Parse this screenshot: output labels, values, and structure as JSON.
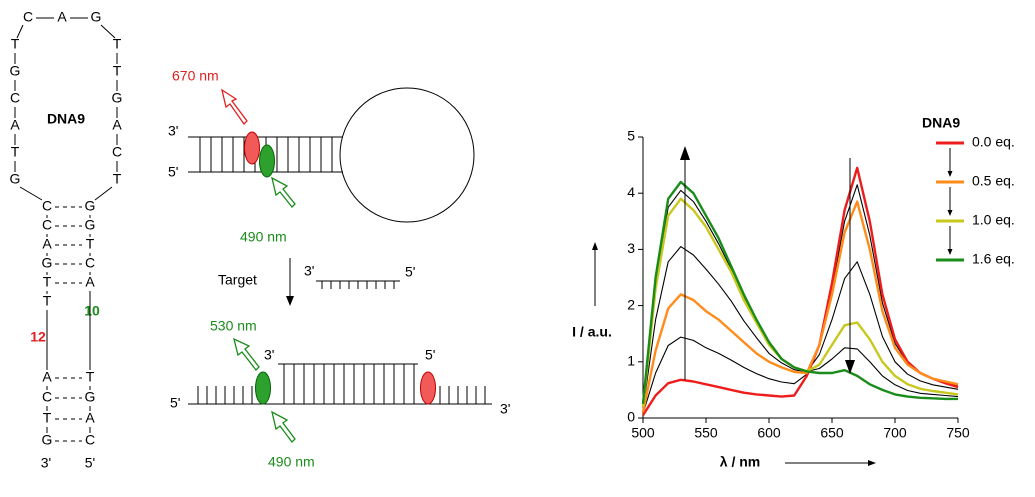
{
  "dna": {
    "label": "DNA9",
    "loop_top": [
      "C",
      "A",
      "G"
    ],
    "loop_left": [
      "T",
      "G",
      "C",
      "A",
      "T",
      "G"
    ],
    "loop_right": [
      "T",
      "T",
      "G",
      "A",
      "C",
      "T"
    ],
    "stem_left": [
      "C",
      "C",
      "A",
      "G",
      "T",
      "T",
      "A",
      "C",
      "T",
      "G"
    ],
    "stem_right": [
      "G",
      "G",
      "T",
      "C",
      "A",
      "T",
      "G",
      "A",
      "C"
    ],
    "marker_left": "12",
    "marker_right": "10",
    "end_left": "3'",
    "end_right": "5'"
  },
  "probe": {
    "emission": "670 nm",
    "excitation": "490 nm",
    "end_top": "3'",
    "end_bottom": "5'"
  },
  "target": {
    "label": "Target",
    "end_left": "3'",
    "end_right": "5'"
  },
  "duplex": {
    "emission": "530 nm",
    "excitation": "490 nm",
    "end_left": "5'",
    "end_top_left": "3'",
    "end_top_right": "5'",
    "end_right": "3'"
  },
  "chart_data": {
    "type": "line",
    "x_label": "λ / nm",
    "y_label": "I / a.u.",
    "legend_title": "DNA9",
    "legend": "right",
    "grid": false,
    "xlim": [
      500,
      750
    ],
    "xticks": [
      500,
      550,
      600,
      650,
      700,
      750
    ],
    "ylim": [
      0,
      5
    ],
    "yticks": [
      0,
      1,
      2,
      3,
      4,
      5
    ],
    "x": [
      500,
      510,
      520,
      530,
      540,
      550,
      560,
      570,
      580,
      590,
      600,
      610,
      620,
      630,
      640,
      650,
      660,
      670,
      680,
      690,
      700,
      710,
      720,
      730,
      740,
      750
    ],
    "series": [
      {
        "color": "#000000",
        "values": [
          0.08,
          0.8,
          1.29,
          1.44,
          1.38,
          1.25,
          1.15,
          1.03,
          0.9,
          0.79,
          0.7,
          0.64,
          0.61,
          0.78,
          1.3,
          2.3,
          3.5,
          4.15,
          3.25,
          2.05,
          1.33,
          0.98,
          0.8,
          0.7,
          0.64,
          0.58
        ]
      },
      {
        "color": "#000000",
        "values": [
          0.15,
          1.75,
          2.78,
          3.05,
          2.9,
          2.65,
          2.38,
          2.08,
          1.73,
          1.43,
          1.15,
          0.98,
          0.86,
          0.82,
          1.13,
          1.75,
          2.48,
          2.78,
          2.2,
          1.45,
          1.0,
          0.78,
          0.66,
          0.59,
          0.55,
          0.51
        ]
      },
      {
        "color": "#000000",
        "values": [
          0.23,
          2.4,
          3.75,
          4.05,
          3.85,
          3.5,
          3.1,
          2.65,
          2.15,
          1.73,
          1.33,
          1.05,
          0.9,
          0.83,
          0.88,
          1.05,
          1.25,
          1.23,
          1.0,
          0.75,
          0.59,
          0.49,
          0.44,
          0.42,
          0.4,
          0.38
        ]
      },
      {
        "name": "0.0 eq.",
        "color": "#ee1c1c",
        "values": [
          0.05,
          0.4,
          0.62,
          0.68,
          0.65,
          0.6,
          0.55,
          0.5,
          0.45,
          0.42,
          0.4,
          0.38,
          0.4,
          0.75,
          1.3,
          2.4,
          3.7,
          4.45,
          3.5,
          2.2,
          1.4,
          1.0,
          0.8,
          0.7,
          0.62,
          0.55
        ]
      },
      {
        "name": "0.5 eq.",
        "color": "#ff8c1a",
        "values": [
          0.1,
          1.2,
          1.95,
          2.2,
          2.1,
          1.9,
          1.75,
          1.55,
          1.35,
          1.15,
          1.0,
          0.9,
          0.82,
          0.8,
          1.3,
          2.2,
          3.3,
          3.85,
          3.0,
          1.9,
          1.25,
          0.95,
          0.8,
          0.7,
          0.65,
          0.6
        ]
      },
      {
        "name": "1.0 eq.",
        "color": "#c8c81e",
        "values": [
          0.2,
          2.3,
          3.6,
          3.9,
          3.7,
          3.4,
          3.0,
          2.6,
          2.1,
          1.7,
          1.3,
          1.05,
          0.9,
          0.83,
          0.95,
          1.3,
          1.65,
          1.7,
          1.4,
          1.0,
          0.75,
          0.6,
          0.52,
          0.48,
          0.45,
          0.42
        ]
      },
      {
        "name": "1.6 eq.",
        "color": "#1a8c1a",
        "values": [
          0.25,
          2.5,
          3.9,
          4.2,
          4.0,
          3.6,
          3.2,
          2.7,
          2.2,
          1.75,
          1.35,
          1.05,
          0.9,
          0.83,
          0.8,
          0.8,
          0.85,
          0.75,
          0.6,
          0.5,
          0.42,
          0.38,
          0.36,
          0.35,
          0.34,
          0.34
        ]
      }
    ]
  }
}
